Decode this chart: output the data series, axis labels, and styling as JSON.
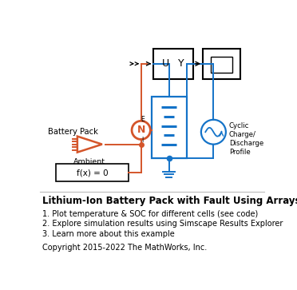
{
  "title": "Lithium-Ion Battery Pack with Fault Using Arrays",
  "bullets": [
    "1. Plot temperature & SOC for different cells (see code)",
    "2. Explore simulation results using Simscape Results Explorer",
    "3. Learn more about this example"
  ],
  "copyright": "Copyright 2015-2022 The MathWorks, Inc.",
  "orange": "#D4552A",
  "blue": "#1473C8",
  "black": "#000000",
  "bg": "#ffffff"
}
